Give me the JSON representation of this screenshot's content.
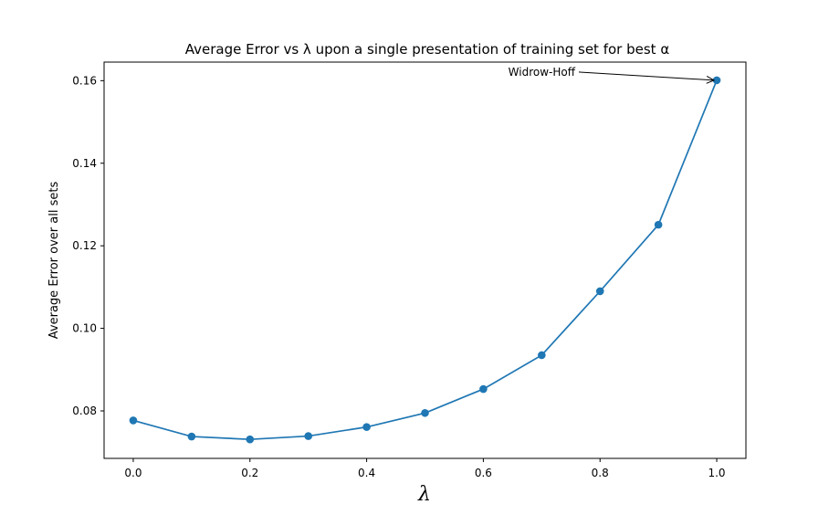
{
  "chart_data": {
    "type": "line",
    "title": "Average Error vs λ upon a single presentation of training set for best α",
    "xlabel": "λ",
    "ylabel": "Average Error over all sets",
    "xlim": [
      -0.05,
      1.05
    ],
    "ylim": [
      0.0685,
      0.1645
    ],
    "xticks": [
      0.0,
      0.2,
      0.4,
      0.6,
      0.8,
      1.0
    ],
    "xtick_labels": [
      "0.0",
      "0.2",
      "0.4",
      "0.6",
      "0.8",
      "1.0"
    ],
    "yticks": [
      0.08,
      0.1,
      0.12,
      0.14,
      0.16
    ],
    "ytick_labels": [
      "0.08",
      "0.10",
      "0.12",
      "0.14",
      "0.16"
    ],
    "grid": false,
    "series": [
      {
        "color": "#1f77b4",
        "x": [
          0.0,
          0.1,
          0.2,
          0.3,
          0.4,
          0.5,
          0.6,
          0.7,
          0.8,
          0.9,
          1.0
        ],
        "y": [
          0.0777,
          0.0738,
          0.0731,
          0.0739,
          0.0761,
          0.0795,
          0.0853,
          0.0935,
          0.109,
          0.1251,
          0.1601
        ]
      }
    ],
    "annotation": {
      "text": "Widrow-Hoff",
      "x": 1.0,
      "y": 0.1601,
      "text_x": 0.7,
      "text_y": 0.1612
    }
  }
}
